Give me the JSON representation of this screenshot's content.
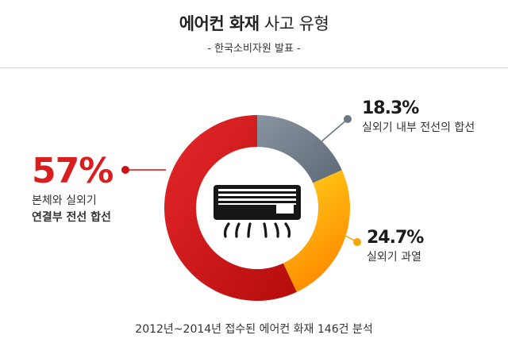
{
  "header": {
    "title_bold": "에어컨 화재",
    "title_light": "사고 유형",
    "subtitle": "- 한국소비자원 발표 -"
  },
  "chart_data": {
    "type": "pie",
    "title": "에어컨 화재 사고 유형",
    "subtitle": "- 한국소비자원 발표 -",
    "slices": [
      {
        "label": "실외기 내부 전선의 합선",
        "value": 18.3,
        "value_label": "18.3%",
        "color": "#6b7685"
      },
      {
        "label": "실외기 과열",
        "value": 24.7,
        "value_label": "24.7%",
        "color": "#f7b500"
      },
      {
        "label": "본체와 실외기 연결부 전선 합선",
        "value": 57,
        "value_label": "57%",
        "color": "#cc1212"
      }
    ],
    "center_icon": "air-conditioner-icon",
    "note": "2012년~2014년 접수된 에어컨 화재 146건 분석"
  },
  "labels": {
    "main": {
      "pct": "57%",
      "line1": "본체와 실외기",
      "line2": "연결부 전선 합선"
    },
    "top_right": {
      "pct": "18.3%",
      "line1": "실외기 내부 전선의 합선"
    },
    "bottom_right": {
      "pct": "24.7%",
      "line1": "실외기 과열"
    }
  },
  "footer": {
    "text": "2012년~2014년 접수된 에어컨 화재 146건 분석"
  }
}
